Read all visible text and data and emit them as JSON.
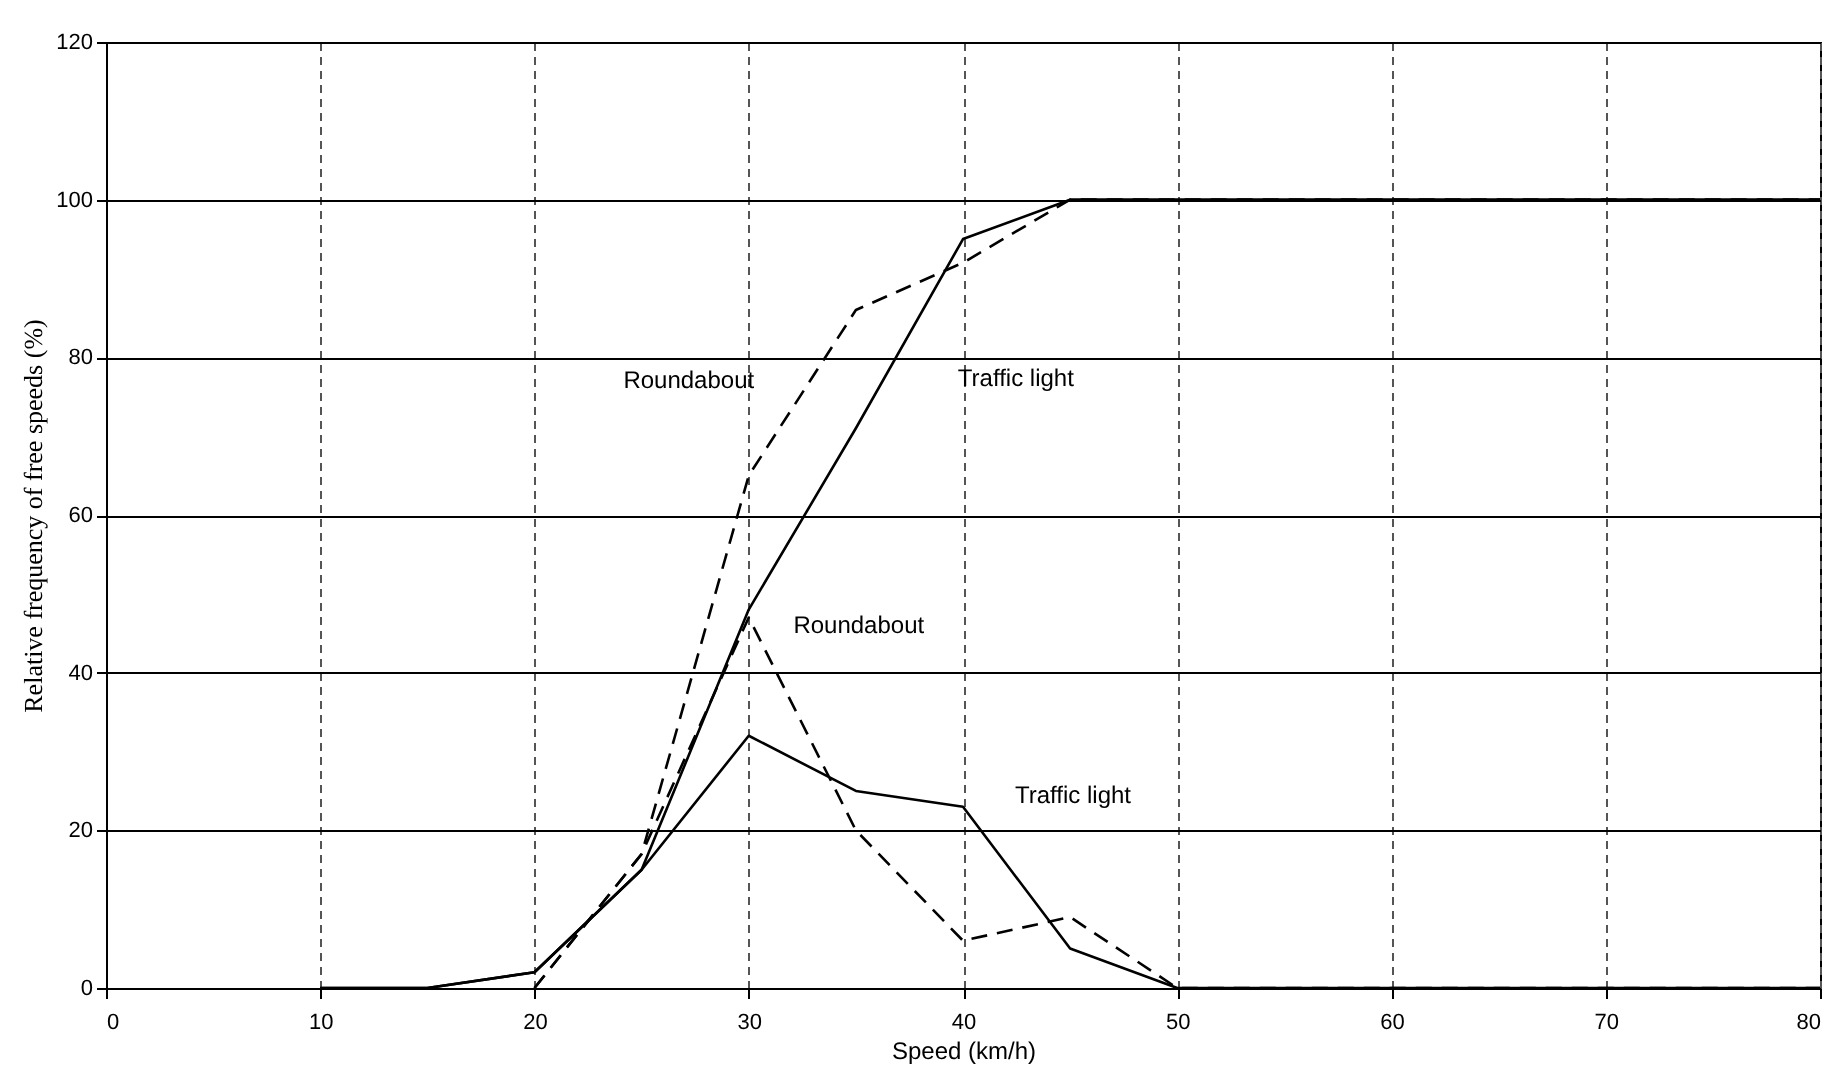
{
  "chart_data": {
    "type": "line",
    "xlabel": "Speed (km/h)",
    "ylabel": "Relative frequency of free speeds (%)",
    "xlim": [
      0,
      80
    ],
    "xticks": [
      0,
      10,
      20,
      30,
      40,
      50,
      60,
      70,
      80
    ],
    "ylim": [
      0,
      120
    ],
    "yticks": [
      0,
      20,
      40,
      60,
      80,
      100,
      120
    ],
    "grid": true,
    "series": [
      {
        "name": "Traffic light",
        "color": "#000000",
        "line_style": "solid",
        "x": [
          10,
          15,
          20,
          25,
          30,
          35,
          40,
          45,
          50,
          80
        ],
        "values": [
          0,
          0,
          2,
          15,
          48,
          71,
          95,
          100,
          100,
          100
        ]
      },
      {
        "name": "Roundabout",
        "color": "#000000",
        "line_style": "dashed",
        "x": [
          20,
          25,
          30,
          35,
          40,
          45,
          50,
          80
        ],
        "values": [
          0,
          17,
          65,
          86,
          92,
          100,
          100,
          100
        ]
      },
      {
        "name": "Traffic light",
        "color": "#000000",
        "line_style": "solid",
        "x": [
          10,
          15,
          20,
          25,
          30,
          35,
          40,
          45,
          50,
          80
        ],
        "values": [
          0,
          0,
          2,
          15,
          32,
          25,
          23,
          5,
          0,
          0
        ]
      },
      {
        "name": "Roundabout",
        "color": "#000000",
        "line_style": "dashed",
        "x": [
          20,
          25,
          30,
          35,
          40,
          45,
          50,
          80
        ],
        "values": [
          0,
          17,
          47,
          20,
          6,
          9,
          0,
          0
        ]
      }
    ]
  }
}
